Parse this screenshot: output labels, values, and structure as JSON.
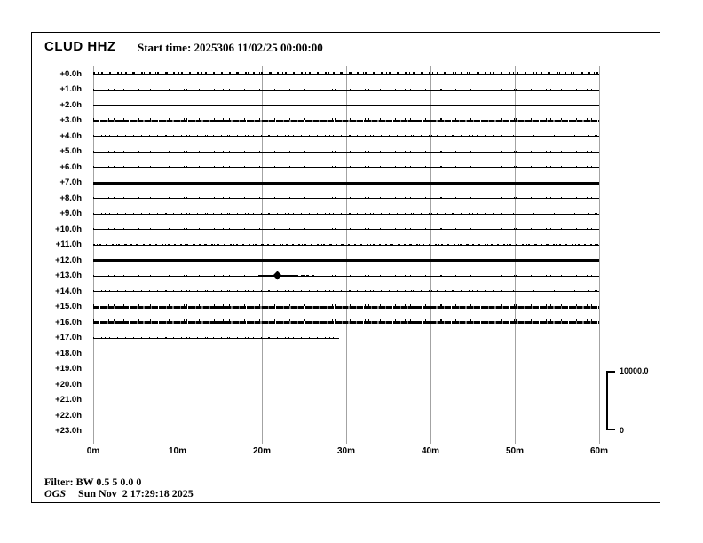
{
  "header": {
    "station": "CLUD HHZ",
    "start_time": "Start time: 2025306 11/02/25 00:00:00"
  },
  "footer": {
    "filter": "Filter: BW 0.5 5 0.0 0",
    "agency": "OGS",
    "timestamp": "Sun Nov  2 17:29:18 2025"
  },
  "colors": {
    "trace": "#000000",
    "grid": "#a3a3a3",
    "text": "#000000",
    "background": "#ffffff"
  },
  "chart_data": {
    "type": "line",
    "variant": "helicorder-day-plot",
    "title": "CLUD HHZ",
    "subtitle": "Start time: 2025306 11/02/25 00:00:00",
    "station": "CLUD",
    "channel": "HHZ",
    "x_axis": {
      "ticks": [
        "0m",
        "10m",
        "20m",
        "30m",
        "40m",
        "50m",
        "60m"
      ],
      "minutes_range": [
        0,
        60
      ],
      "grid": true
    },
    "y_axis": {
      "rows_per_day": 24,
      "row_labels": [
        "+0.0h",
        "+1.0h",
        "+2.0h",
        "+3.0h",
        "+4.0h",
        "+5.0h",
        "+6.0h",
        "+7.0h",
        "+8.0h",
        "+9.0h",
        "+10.0h",
        "+11.0h",
        "+12.0h",
        "+13.0h",
        "+14.0h",
        "+15.0h",
        "+16.0h",
        "+17.0h",
        "+18.0h",
        "+19.0h",
        "+20.0h",
        "+21.0h",
        "+22.0h",
        "+23.0h"
      ]
    },
    "amplitude_scale": {
      "max_label": "10000.0",
      "min_label": "0"
    },
    "rows": [
      {
        "label": "+0.0h",
        "trace": true,
        "end_minute": 60,
        "activity": "noisy-light"
      },
      {
        "label": "+1.0h",
        "trace": true,
        "end_minute": 60,
        "activity": "dots-sparse"
      },
      {
        "label": "+2.0h",
        "trace": true,
        "end_minute": 60,
        "activity": "quiet"
      },
      {
        "label": "+3.0h",
        "trace": true,
        "end_minute": 60,
        "activity": "thick-noisy"
      },
      {
        "label": "+4.0h",
        "trace": true,
        "end_minute": 60,
        "activity": "dots"
      },
      {
        "label": "+5.0h",
        "trace": true,
        "end_minute": 60,
        "activity": "dots-sparse"
      },
      {
        "label": "+6.0h",
        "trace": true,
        "end_minute": 60,
        "activity": "dots-sparse"
      },
      {
        "label": "+7.0h",
        "trace": true,
        "end_minute": 60,
        "activity": "solid-thick"
      },
      {
        "label": "+8.0h",
        "trace": true,
        "end_minute": 60,
        "activity": "dots-sparse"
      },
      {
        "label": "+9.0h",
        "trace": true,
        "end_minute": 60,
        "activity": "dots"
      },
      {
        "label": "+10.0h",
        "trace": true,
        "end_minute": 60,
        "activity": "dots-sparse"
      },
      {
        "label": "+11.0h",
        "trace": true,
        "end_minute": 60,
        "activity": "dashes"
      },
      {
        "label": "+12.0h",
        "trace": true,
        "end_minute": 60,
        "activity": "solid-thick"
      },
      {
        "label": "+13.0h",
        "trace": true,
        "end_minute": 60,
        "activity": "dots-sparse"
      },
      {
        "label": "+14.0h",
        "trace": true,
        "end_minute": 60,
        "activity": "dots"
      },
      {
        "label": "+15.0h",
        "trace": true,
        "end_minute": 60,
        "activity": "thick-noisy"
      },
      {
        "label": "+16.0h",
        "trace": true,
        "end_minute": 60,
        "activity": "thick-noisy"
      },
      {
        "label": "+17.0h",
        "trace": true,
        "end_minute": 29.2,
        "activity": "dots"
      },
      {
        "label": "+18.0h",
        "trace": false,
        "end_minute": 0,
        "activity": "none"
      },
      {
        "label": "+19.0h",
        "trace": false,
        "end_minute": 0,
        "activity": "none"
      },
      {
        "label": "+20.0h",
        "trace": false,
        "end_minute": 0,
        "activity": "none"
      },
      {
        "label": "+21.0h",
        "trace": false,
        "end_minute": 0,
        "activity": "none"
      },
      {
        "label": "+22.0h",
        "trace": false,
        "end_minute": 0,
        "activity": "none"
      },
      {
        "label": "+23.0h",
        "trace": false,
        "end_minute": 0,
        "activity": "none"
      }
    ],
    "event_marker": {
      "row_label": "+13.0h",
      "minute": 21.8,
      "tail_end_minute": 26.3
    }
  }
}
